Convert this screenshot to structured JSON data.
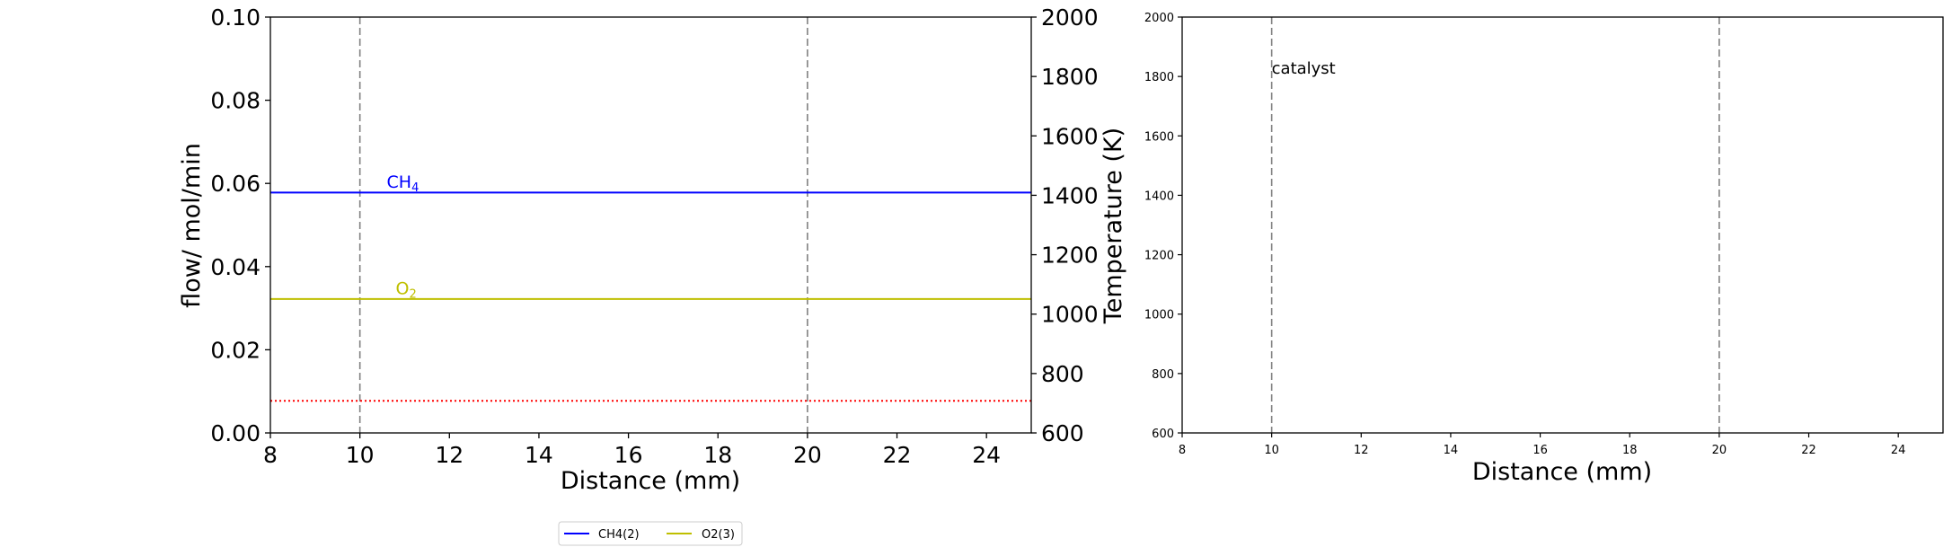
{
  "chart_data": [
    {
      "type": "line",
      "xlabel": "Distance (mm)",
      "ylabel": "flow/ mol/min",
      "y2label": "Temperature (K)",
      "xlim": [
        8,
        25
      ],
      "ylim": [
        0.0,
        0.1
      ],
      "y2lim": [
        600,
        2000
      ],
      "xticks": [
        "8",
        "10",
        "12",
        "14",
        "16",
        "18",
        "20",
        "22",
        "24"
      ],
      "yticks": [
        "0.00",
        "0.02",
        "0.04",
        "0.06",
        "0.08",
        "0.10"
      ],
      "y2ticks": [
        "600",
        "800",
        "1000",
        "1200",
        "1400",
        "1600",
        "1800",
        "2000"
      ],
      "vlines": [
        10,
        20
      ],
      "series": [
        {
          "name": "CH4(2)",
          "label": "CH",
          "label_sub": "4",
          "color": "#0000ff",
          "x": [
            8,
            25
          ],
          "y": [
            0.0578,
            0.0578
          ],
          "label_at": [
            10.6,
            0.059
          ]
        },
        {
          "name": "O2(3)",
          "label": "O",
          "label_sub": "2",
          "color": "#bfbf00",
          "x": [
            8,
            25
          ],
          "y": [
            0.0322,
            0.0322
          ],
          "label_at": [
            10.8,
            0.0334
          ]
        }
      ],
      "temperature_series": {
        "color": "#ff0000",
        "style": "dotted",
        "x": [
          8,
          25
        ],
        "y": [
          708,
          708
        ]
      },
      "legend": {
        "placement": "bottom-center",
        "entries": [
          "CH4(2)",
          "O2(3)"
        ]
      }
    },
    {
      "type": "line",
      "xlabel": "Distance (mm)",
      "xlim": [
        8,
        25
      ],
      "ylim": [
        600,
        2000
      ],
      "xticks": [
        "8",
        "10",
        "12",
        "14",
        "16",
        "18",
        "20",
        "22",
        "24"
      ],
      "yticks": [
        "600",
        "800",
        "1000",
        "1200",
        "1400",
        "1600",
        "1800",
        "2000"
      ],
      "vlines": [
        10,
        20
      ],
      "annotation": {
        "text": "catalyst",
        "x": 10,
        "y": 1800
      }
    }
  ]
}
